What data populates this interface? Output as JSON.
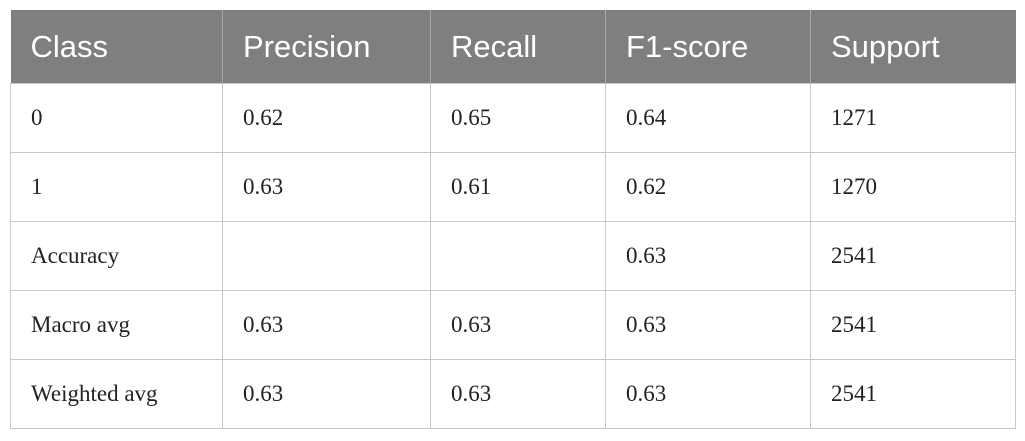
{
  "table": {
    "header": [
      "Class",
      "Precision",
      "Recall",
      "F1-score",
      "Support"
    ],
    "rows": [
      [
        "0",
        "0.62",
        "0.65",
        "0.64",
        "1271"
      ],
      [
        "1",
        "0.63",
        "0.61",
        "0.62",
        "1270"
      ],
      [
        "Accuracy",
        null,
        null,
        "0.63",
        "2541"
      ],
      [
        "Macro avg",
        "0.63",
        "0.63",
        "0.63",
        "2541"
      ],
      [
        "Weighted avg",
        "0.63",
        "0.63",
        "0.63",
        "2541"
      ]
    ]
  }
}
